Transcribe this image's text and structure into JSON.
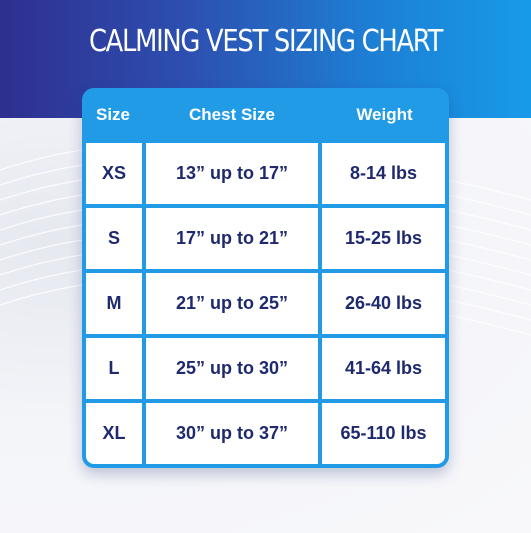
{
  "title": "CALMING VEST SIZING CHART",
  "headers": {
    "size": "Size",
    "chest": "Chest Size",
    "weight": "Weight"
  },
  "rows": [
    {
      "size": "XS",
      "chest": "13” up to 17”",
      "weight": "8-14 lbs"
    },
    {
      "size": "S",
      "chest": "17” up to 21”",
      "weight": "15-25 lbs"
    },
    {
      "size": "M",
      "chest": "21” up to 25”",
      "weight": "26-40 lbs"
    },
    {
      "size": "L",
      "chest": "25” up to 30”",
      "weight": "41-64 lbs"
    },
    {
      "size": "XL",
      "chest": "30” up to 37”",
      "weight": "65-110 lbs"
    }
  ],
  "colors": {
    "table_border": "#229be6",
    "cell_text": "#1f2a6e",
    "header_text": "#ffffff"
  }
}
